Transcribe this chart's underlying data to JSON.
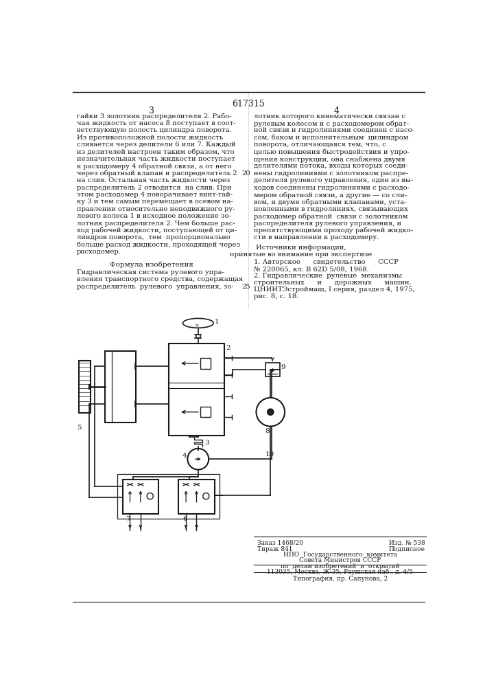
{
  "patent_number": "617315",
  "page_left": "3",
  "page_right": "4",
  "col_left_text": [
    "гайки 3 золотник распределителя 2. Рабо-",
    "чая жидкость от насоса 8 поступает в соот-",
    "ветствующую полость цилиндра поворота.",
    "Из противоположной полости жидкость",
    "сливается через делители 6 или 7. Каждый",
    "из делителей настроен таким образом, что",
    "незначительная часть жидкости поступает",
    "к расходомеру 4 обратной связи, а от него",
    "через обратный клапан и распределитель 2",
    "на слив. Остальная часть жидкости через",
    "распределитель 2 отводится  на слив. При",
    "этом расходомер 4 поворачивает винт-гай-",
    "ку 3 и тем самым перемещает в осевом на-",
    "правлении относительно неподвижного ру-",
    "левого колеса 1 в исходное положение зо-",
    "лотник распределителя 2. Чем больше рас-",
    "ход рабочей жидкости, поступающей от ци-",
    "линдров поворота,  тем  пропорционально",
    "больше расход жидкости, проходящей через",
    "расходомер."
  ],
  "formula_title": "Формула изобретения",
  "formula_text": [
    "Гидравлическая система рулевого упра-",
    "вления транспортного средства, содержащая",
    "распределитель  рулевого  управления, зо-"
  ],
  "col_right_text": [
    "лотник которого кинематически связан с",
    "рулевым колесом и с расходомером обрат-",
    "ной связи и гидролиниями соединен с насо-",
    "сом, баком и исполнительным  цилиндром",
    "поворота, отличающаяся тем, что, с",
    "целью повышения быстродействия и упро-",
    "щения конструкции, она снабжена двумя",
    "делителями потока, входы которых соеди-",
    "нены гидролиниями с золотником распре-",
    "делителя рулевого управления, один из вы-",
    "ходов соединены гидролиниями с расходо-",
    "мером обратной связи, а другие — со сли-",
    "вом, и двумя обратными клапанами, уста-",
    "новленными в гидролиниях, связывающих",
    "расходомер обратной  связи с золотником",
    "распределителя рулевого управления, и",
    "препятствующими проходу рабочей жидко-",
    "сти в направлении к расходомеру."
  ],
  "sources_title": "Источники информации,",
  "sources_subtitle": "принятые во внимание при экспертизе",
  "source1": "1. Авторское      свидетельство      СССР",
  "source1b": "№ 220065, кл. В 62D 5/08, 1968.",
  "source2": "2. Гидравлические  рулевые  механизмы",
  "source2b": "строительных      и      дорожных      машин.",
  "source2c": "ЦНИИТЭстроймаш, I серия, раздел 4, 1975,",
  "source2d": "рис. 8, с. 18.",
  "line_num_20": "20",
  "line_num_25": "25",
  "footer_line1a": "Заказ 1468/20",
  "footer_line1b": "Изд. № 538",
  "footer_line2a": "Тираж 841",
  "footer_line2b": "Подписное",
  "footer_line3": "НПО  Государственного  комитета",
  "footer_line4": "Совета Министров СССР",
  "footer_line5": "по  делам изобретений  и  открытий",
  "footer_line6": "113035, Москва, Ж-35, Раушская наб., д. 4/5",
  "footer_line7": "Типография, пр. Сапунова, 2",
  "bg_color": "#ffffff",
  "text_color": "#1a1a1a",
  "line_color": "#1a1a1a"
}
